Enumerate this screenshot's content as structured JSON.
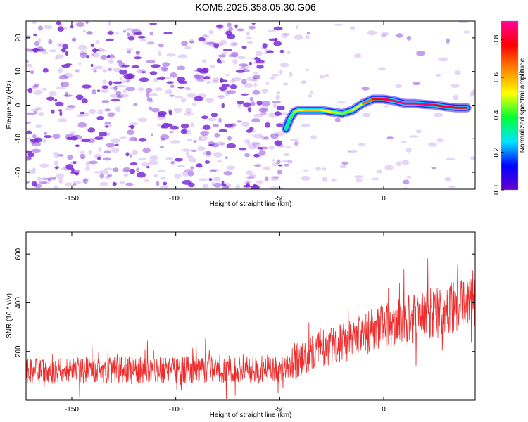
{
  "title": "KOM5.2025.358.05.30.G06",
  "colors": {
    "snr_line": "#ee2c2c",
    "speckle": "#7b2bd6",
    "background": "#ffffff",
    "frame": "#000000"
  },
  "chart_data": [
    {
      "type": "heatmap",
      "id": "spectrogram",
      "xlabel": "Height of straight line (km)",
      "ylabel": "Frequency (Hz)",
      "xlim": [
        -172,
        44
      ],
      "ylim": [
        -25,
        25
      ],
      "xticks": [
        -150,
        -100,
        -50,
        0
      ],
      "xtick_labels": [
        "-150",
        "-100",
        "-50",
        "0"
      ],
      "yticks": [
        20,
        10,
        0,
        -10,
        -20
      ],
      "ytick_labels": [
        "20",
        "10",
        "0",
        "-10",
        "-20"
      ],
      "colorbar": {
        "label": "Normalized spectral amplitude",
        "range": [
          0.0,
          0.9
        ],
        "ticks": [
          0.0,
          0.2,
          0.4,
          0.6,
          0.8
        ],
        "tick_labels": [
          "0.0",
          "0.2",
          "0.4",
          "0.6",
          "0.8"
        ],
        "stops": [
          "#6600cc",
          "#0000ff",
          "#00e5ff",
          "#00ff33",
          "#ffff00",
          "#ff8800",
          "#ff0000",
          "#ff0099"
        ]
      },
      "ridge": {
        "name": "dominant frequency track",
        "x": [
          -47,
          -45,
          -43,
          -41,
          -38,
          -35,
          -30,
          -25,
          -20,
          -15,
          -10,
          -5,
          0,
          5,
          10,
          15,
          20,
          25,
          30,
          35,
          40
        ],
        "y": [
          -7,
          -4,
          -2,
          -1.5,
          -1.5,
          -1.5,
          -1.5,
          -2,
          -2.5,
          -1.5,
          0.5,
          1.8,
          1.8,
          1.3,
          0.5,
          0.5,
          0.2,
          0,
          -0.5,
          -0.8,
          -0.8
        ],
        "amplitude": [
          0.3,
          0.4,
          0.45,
          0.5,
          0.55,
          0.6,
          0.55,
          0.5,
          0.45,
          0.45,
          0.6,
          0.75,
          0.8,
          0.85,
          0.9,
          0.85,
          0.88,
          0.8,
          0.75,
          0.85,
          0.75
        ]
      }
    },
    {
      "type": "line",
      "id": "snr",
      "xlabel": "Height of straight line (km)",
      "ylabel": "SNR (10 * v/v)",
      "xlim": [
        -172,
        44
      ],
      "ylim": [
        0,
        690
      ],
      "xticks": [
        -150,
        -100,
        -50,
        0
      ],
      "xtick_labels": [
        "-150",
        "-100",
        "-50",
        "0"
      ],
      "yticks": [
        200,
        400,
        600
      ],
      "ytick_labels": [
        "200",
        "400",
        "600"
      ],
      "series": [
        {
          "name": "SNR",
          "trend_x": [
            -172,
            -150,
            -100,
            -60,
            -45,
            -38,
            -30,
            -15,
            0,
            15,
            30,
            44
          ],
          "trend_y": [
            120,
            122,
            125,
            125,
            130,
            175,
            210,
            250,
            300,
            340,
            370,
            410
          ],
          "noise_amplitude": [
            60,
            60,
            62,
            62,
            65,
            75,
            85,
            95,
            105,
            115,
            120,
            120
          ],
          "samples": 1300
        }
      ]
    }
  ]
}
